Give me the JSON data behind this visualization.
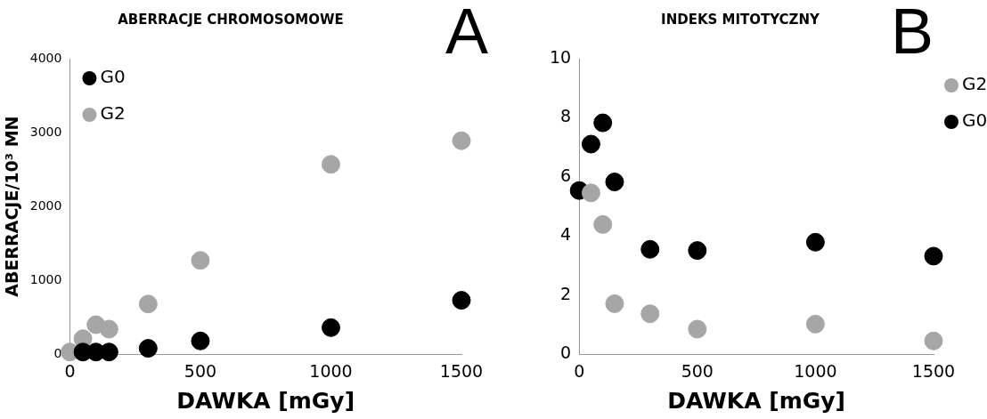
{
  "chart_data": [
    {
      "type": "scatter",
      "title": "ABERRACJE CHROMOSOMOWE",
      "xlabel": "DAWKA [mGy]",
      "ylabel": "ABERRACJE/10³ MN",
      "x": [
        0,
        50,
        100,
        150,
        300,
        500,
        1000,
        1500
      ],
      "series": [
        {
          "name": "G0",
          "color": "#000000",
          "values": [
            null,
            30,
            30,
            30,
            80,
            180,
            360,
            730
          ]
        },
        {
          "name": "G2",
          "color": "#a6a6a6",
          "values": [
            30,
            210,
            400,
            340,
            680,
            1270,
            2570,
            2890
          ]
        }
      ],
      "xlim": [
        0,
        1500
      ],
      "xticks": [
        0,
        500,
        1000,
        1500
      ],
      "ylim": [
        0,
        4000
      ],
      "yticks": [
        0,
        1000,
        2000,
        3000,
        4000
      ],
      "grid": false,
      "legend": "top left",
      "marker": "circle",
      "annotations": [
        "A"
      ]
    },
    {
      "type": "scatter",
      "title": "INDEKS MITOTYCZNY",
      "xlabel": "DAWKA [mGy]",
      "x": [
        0,
        50,
        100,
        150,
        300,
        500,
        1000,
        1500
      ],
      "series": [
        {
          "name": "G2",
          "color": "#a6a6a6",
          "values": [
            null,
            5.46,
            4.39,
            1.71,
            1.37,
            0.85,
            1.02,
            0.45
          ]
        },
        {
          "name": "G0",
          "color": "#000000",
          "values": [
            5.54,
            7.11,
            7.83,
            5.83,
            3.55,
            3.51,
            3.79,
            3.32
          ]
        }
      ],
      "xlim": [
        0,
        1500
      ],
      "xticks": [
        0,
        500,
        1000,
        1500
      ],
      "ylim": [
        0,
        10
      ],
      "yticks": [
        0,
        2,
        4,
        6,
        8,
        10
      ],
      "grid": false,
      "legend": "right",
      "marker": "circle",
      "annotations": [
        "B"
      ]
    }
  ]
}
